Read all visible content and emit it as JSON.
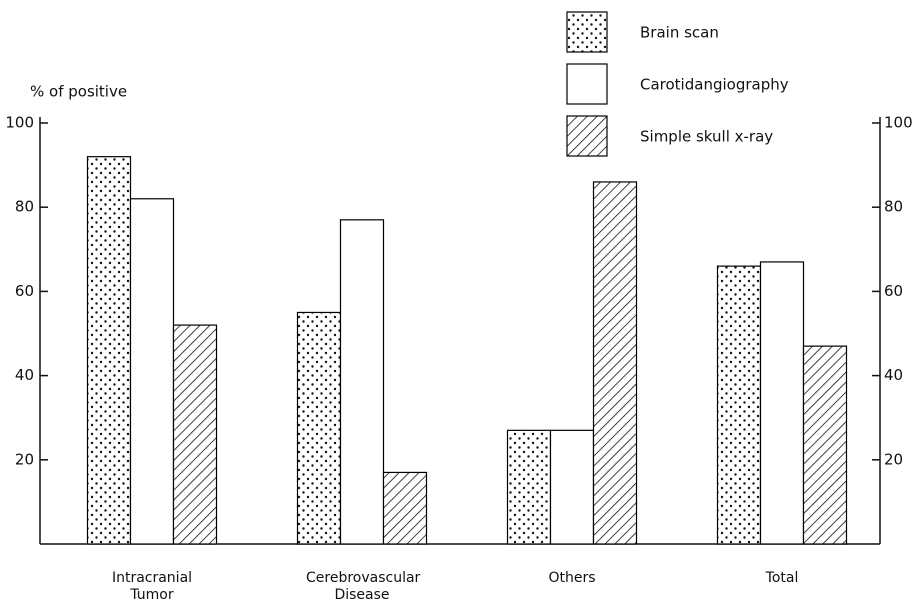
{
  "chart_data": {
    "type": "bar",
    "y_label": "% of positive",
    "categories": [
      "Intracranial Tumor",
      "Cerebrovascular Disease",
      "Others",
      "Total"
    ],
    "series": [
      {
        "name": "Brain scan",
        "color": "#000000",
        "pattern": "dots",
        "values": [
          92,
          55,
          27,
          66
        ]
      },
      {
        "name": "Carotidangiography",
        "color": "#000000",
        "pattern": "none",
        "values": [
          82,
          77,
          27,
          67
        ]
      },
      {
        "name": "Simple skull x-ray",
        "color": "#000000",
        "pattern": "hatch",
        "values": [
          52,
          17,
          86,
          47
        ]
      }
    ],
    "ylim": [
      0,
      100
    ],
    "yticks": [
      20,
      40,
      60,
      80,
      100
    ],
    "y2lim": [
      0,
      100
    ],
    "y2ticks": [
      20,
      40,
      60,
      80,
      100
    ],
    "grid": false
  }
}
